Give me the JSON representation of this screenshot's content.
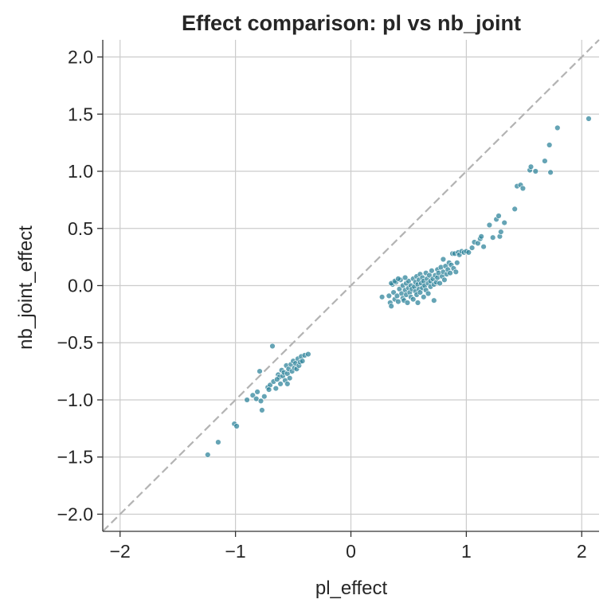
{
  "chart_data": {
    "type": "scatter",
    "title": "Effect comparison: pl vs nb_joint",
    "xlabel": "pl_effect",
    "ylabel": "nb_joint_effect",
    "xlim": [
      -2.15,
      2.15
    ],
    "ylim": [
      -2.15,
      2.15
    ],
    "xticks": [
      -2,
      -1,
      0,
      1,
      2
    ],
    "xtick_labels": [
      "−2",
      "−1",
      "0",
      "1",
      "2"
    ],
    "yticks": [
      -2.0,
      -1.5,
      -1.0,
      -0.5,
      0.0,
      0.5,
      1.0,
      1.5,
      2.0
    ],
    "ytick_labels": [
      "−2.0",
      "−1.5",
      "−1.0",
      "−0.5",
      "0.0",
      "0.5",
      "1.0",
      "1.5",
      "2.0"
    ],
    "grid": true,
    "reference_line": "y = x (dashed, gray)",
    "point_color": "#2a8199",
    "reference_color": "#b3b3b3",
    "points": [
      [
        -1.24,
        -1.48
      ],
      [
        -1.15,
        -1.37
      ],
      [
        -1.01,
        -1.21
      ],
      [
        -0.99,
        -1.23
      ],
      [
        -0.9,
        -1.0
      ],
      [
        -0.85,
        -0.96
      ],
      [
        -0.82,
        -0.99
      ],
      [
        -0.81,
        -0.93
      ],
      [
        -0.79,
        -0.75
      ],
      [
        -0.78,
        -1.01
      ],
      [
        -0.77,
        -1.09
      ],
      [
        -0.75,
        -0.97
      ],
      [
        -0.72,
        -0.89
      ],
      [
        -0.7,
        -0.87
      ],
      [
        -0.68,
        -0.53
      ],
      [
        -0.67,
        -0.84
      ],
      [
        -0.65,
        -0.9
      ],
      [
        -0.63,
        -0.78
      ],
      [
        -0.62,
        -0.8
      ],
      [
        -0.61,
        -0.86
      ],
      [
        -0.6,
        -0.74
      ],
      [
        -0.59,
        -0.79
      ],
      [
        -0.58,
        -0.76
      ],
      [
        -0.57,
        -0.83
      ],
      [
        -0.56,
        -0.7
      ],
      [
        -0.55,
        -0.77
      ],
      [
        -0.54,
        -0.73
      ],
      [
        -0.53,
        -0.81
      ],
      [
        -0.52,
        -0.69
      ],
      [
        -0.51,
        -0.75
      ],
      [
        -0.5,
        -0.66
      ],
      [
        -0.49,
        -0.72
      ],
      [
        -0.48,
        -0.68
      ],
      [
        -0.47,
        -0.73
      ],
      [
        -0.46,
        -0.64
      ],
      [
        -0.45,
        -0.7
      ],
      [
        -0.44,
        -0.67
      ],
      [
        -0.43,
        -0.62
      ],
      [
        -0.42,
        -0.66
      ],
      [
        -0.4,
        -0.61
      ],
      [
        -0.37,
        -0.6
      ],
      [
        -0.55,
        -0.86
      ],
      [
        -0.64,
        -0.82
      ],
      [
        -0.71,
        -0.91
      ],
      [
        0.27,
        -0.1
      ],
      [
        0.34,
        -0.15
      ],
      [
        0.35,
        -0.18
      ],
      [
        0.36,
        0.01
      ],
      [
        0.37,
        -0.06
      ],
      [
        0.38,
        -0.12
      ],
      [
        0.39,
        0.03
      ],
      [
        0.4,
        -0.09
      ],
      [
        0.41,
        -0.14
      ],
      [
        0.42,
        -0.03
      ],
      [
        0.43,
        0.05
      ],
      [
        0.44,
        -0.07
      ],
      [
        0.45,
        -0.11
      ],
      [
        0.45,
        0.0
      ],
      [
        0.46,
        -0.13
      ],
      [
        0.47,
        -0.04
      ],
      [
        0.48,
        0.02
      ],
      [
        0.48,
        -0.08
      ],
      [
        0.49,
        -0.15
      ],
      [
        0.5,
        -0.02
      ],
      [
        0.5,
        0.04
      ],
      [
        0.51,
        -0.06
      ],
      [
        0.52,
        -0.1
      ],
      [
        0.52,
        0.0
      ],
      [
        0.53,
        -0.03
      ],
      [
        0.54,
        0.06
      ],
      [
        0.54,
        -0.12
      ],
      [
        0.55,
        -0.01
      ],
      [
        0.56,
        -0.05
      ],
      [
        0.56,
        0.03
      ],
      [
        0.57,
        0.08
      ],
      [
        0.57,
        -0.08
      ],
      [
        0.58,
        0.01
      ],
      [
        0.59,
        -0.03
      ],
      [
        0.59,
        0.05
      ],
      [
        0.6,
        -0.06
      ],
      [
        0.6,
        0.1
      ],
      [
        0.61,
        0.02
      ],
      [
        0.62,
        -0.02
      ],
      [
        0.62,
        0.07
      ],
      [
        0.63,
        -0.1
      ],
      [
        0.63,
        0.04
      ],
      [
        0.64,
        0.0
      ],
      [
        0.65,
        0.11
      ],
      [
        0.65,
        -0.04
      ],
      [
        0.66,
        0.06
      ],
      [
        0.67,
        0.02
      ],
      [
        0.67,
        -0.07
      ],
      [
        0.68,
        0.09
      ],
      [
        0.69,
        0.04
      ],
      [
        0.69,
        -0.01
      ],
      [
        0.7,
        0.13
      ],
      [
        0.71,
        0.06
      ],
      [
        0.72,
        0.01
      ],
      [
        0.72,
        -0.13
      ],
      [
        0.73,
        0.09
      ],
      [
        0.74,
        0.03
      ],
      [
        0.75,
        0.14
      ],
      [
        0.75,
        0.07
      ],
      [
        0.76,
        0.11
      ],
      [
        0.77,
        0.02
      ],
      [
        0.78,
        0.16
      ],
      [
        0.79,
        0.08
      ],
      [
        0.8,
        0.23
      ],
      [
        0.8,
        0.12
      ],
      [
        0.81,
        0.05
      ],
      [
        0.82,
        0.17
      ],
      [
        0.83,
        0.1
      ],
      [
        0.84,
        0.14
      ],
      [
        0.85,
        0.2
      ],
      [
        0.86,
        0.11
      ],
      [
        0.87,
        0.18
      ],
      [
        0.88,
        0.28
      ],
      [
        0.89,
        0.15
      ],
      [
        0.9,
        0.28
      ],
      [
        0.91,
        0.12
      ],
      [
        0.92,
        0.2
      ],
      [
        0.93,
        0.29
      ],
      [
        0.94,
        0.27
      ],
      [
        0.96,
        0.3
      ],
      [
        0.98,
        0.29
      ],
      [
        1.0,
        0.3
      ],
      [
        1.02,
        0.29
      ],
      [
        1.05,
        0.33
      ],
      [
        1.07,
        0.38
      ],
      [
        1.1,
        0.37
      ],
      [
        1.12,
        0.41
      ],
      [
        1.13,
        0.43
      ],
      [
        1.15,
        0.34
      ],
      [
        1.2,
        0.53
      ],
      [
        1.23,
        0.42
      ],
      [
        1.26,
        0.58
      ],
      [
        1.28,
        0.61
      ],
      [
        1.29,
        0.43
      ],
      [
        1.3,
        0.47
      ],
      [
        1.33,
        0.55
      ],
      [
        1.42,
        0.67
      ],
      [
        1.44,
        0.87
      ],
      [
        1.47,
        0.88
      ],
      [
        1.49,
        0.85
      ],
      [
        1.55,
        1.01
      ],
      [
        1.56,
        1.04
      ],
      [
        1.6,
        1.0
      ],
      [
        1.68,
        1.09
      ],
      [
        1.72,
        1.23
      ],
      [
        1.73,
        0.99
      ],
      [
        1.79,
        1.38
      ],
      [
        2.06,
        1.46
      ],
      [
        0.35,
        0.02
      ],
      [
        0.38,
        0.04
      ],
      [
        0.33,
        -0.09
      ],
      [
        0.41,
        0.06
      ],
      [
        0.47,
        0.07
      ],
      [
        0.58,
        -0.15
      ]
    ]
  }
}
